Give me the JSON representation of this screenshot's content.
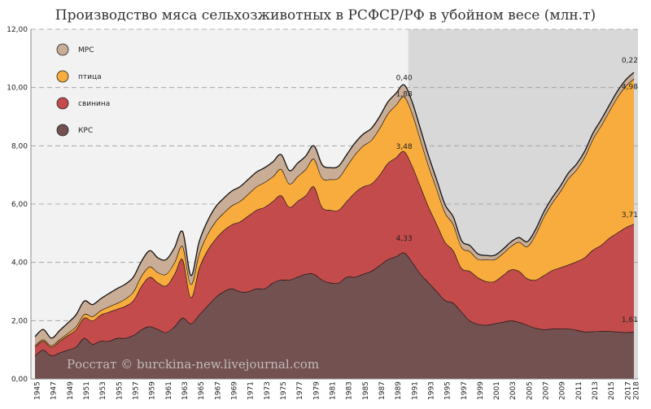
{
  "chart_data": {
    "type": "area",
    "stacked": true,
    "title": "Производство мяса сельхозживотных в РСФСР/РФ в убойном весе (млн.т)",
    "source": "Росстат © burckina-new.livejournal.com",
    "xlabel": "",
    "ylabel": "",
    "xlim": [
      1945,
      2018
    ],
    "ylim": [
      0,
      12
    ],
    "y_ticks": [
      "0,00",
      "2,00",
      "4,00",
      "6,00",
      "8,00",
      "10,00",
      "12,00"
    ],
    "x_ticks": [
      "1945",
      "1947",
      "1949",
      "1951",
      "1953",
      "1955",
      "1957",
      "1959",
      "1961",
      "1963",
      "1965",
      "1967",
      "1969",
      "1971",
      "1973",
      "1975",
      "1977",
      "1979",
      "1981",
      "1983",
      "1985",
      "1987",
      "1989",
      "1991",
      "1993",
      "1995",
      "1997",
      "1999",
      "2001",
      "2003",
      "2005",
      "2007",
      "2009",
      "2011",
      "2013",
      "2015",
      "2017",
      "2018"
    ],
    "grid": "horizontal dashed",
    "shaded_region": [
      1990.5,
      2018.5
    ],
    "legend_position": "top-left",
    "x": [
      1945,
      1946,
      1947,
      1948,
      1949,
      1950,
      1951,
      1952,
      1953,
      1954,
      1955,
      1956,
      1957,
      1958,
      1959,
      1960,
      1961,
      1962,
      1963,
      1964,
      1965,
      1966,
      1967,
      1968,
      1969,
      1970,
      1971,
      1972,
      1973,
      1974,
      1975,
      1976,
      1977,
      1978,
      1979,
      1980,
      1981,
      1982,
      1983,
      1984,
      1985,
      1986,
      1987,
      1988,
      1989,
      1990,
      1991,
      1992,
      1993,
      1994,
      1995,
      1996,
      1997,
      1998,
      1999,
      2000,
      2001,
      2002,
      2003,
      2004,
      2005,
      2006,
      2007,
      2008,
      2009,
      2010,
      2011,
      2012,
      2013,
      2014,
      2015,
      2016,
      2017,
      2018
    ],
    "series": [
      {
        "name": "КРС",
        "color": "#735151",
        "values": [
          0.8,
          1.0,
          0.8,
          0.9,
          1.0,
          1.1,
          1.4,
          1.2,
          1.3,
          1.3,
          1.4,
          1.4,
          1.5,
          1.7,
          1.8,
          1.7,
          1.6,
          1.8,
          2.1,
          1.9,
          2.2,
          2.5,
          2.8,
          3.0,
          3.1,
          3.0,
          3.0,
          3.1,
          3.1,
          3.3,
          3.4,
          3.4,
          3.5,
          3.6,
          3.6,
          3.4,
          3.3,
          3.3,
          3.5,
          3.5,
          3.6,
          3.7,
          3.9,
          4.1,
          4.2,
          4.33,
          4.0,
          3.6,
          3.3,
          3.0,
          2.7,
          2.6,
          2.3,
          2.0,
          1.88,
          1.85,
          1.9,
          1.95,
          2.0,
          1.95,
          1.85,
          1.75,
          1.7,
          1.72,
          1.72,
          1.72,
          1.68,
          1.62,
          1.63,
          1.64,
          1.64,
          1.62,
          1.6,
          1.61
        ]
      },
      {
        "name": "свинина",
        "color": "#c34b4b",
        "values": [
          0.3,
          0.3,
          0.3,
          0.4,
          0.5,
          0.6,
          0.7,
          0.8,
          0.9,
          1.0,
          1.0,
          1.1,
          1.2,
          1.5,
          1.7,
          1.6,
          1.6,
          1.8,
          2.0,
          0.9,
          1.6,
          1.9,
          2.0,
          2.1,
          2.2,
          2.4,
          2.6,
          2.7,
          2.8,
          2.8,
          2.9,
          2.5,
          2.6,
          2.7,
          3.0,
          2.5,
          2.5,
          2.5,
          2.6,
          2.9,
          3.0,
          3.0,
          3.1,
          3.3,
          3.4,
          3.48,
          3.3,
          3.0,
          2.6,
          2.3,
          2.0,
          1.8,
          1.5,
          1.7,
          1.6,
          1.5,
          1.45,
          1.6,
          1.75,
          1.75,
          1.6,
          1.65,
          1.85,
          2.0,
          2.1,
          2.2,
          2.35,
          2.55,
          2.8,
          2.95,
          3.2,
          3.4,
          3.6,
          3.71
        ]
      },
      {
        "name": "птица",
        "color": "#f7ac3d",
        "values": [
          0.05,
          0.05,
          0.05,
          0.06,
          0.07,
          0.1,
          0.12,
          0.15,
          0.15,
          0.18,
          0.2,
          0.25,
          0.3,
          0.35,
          0.35,
          0.35,
          0.4,
          0.4,
          0.45,
          0.45,
          0.5,
          0.55,
          0.6,
          0.6,
          0.65,
          0.7,
          0.75,
          0.8,
          0.85,
          0.85,
          0.9,
          0.8,
          0.85,
          0.9,
          0.95,
          1.0,
          1.05,
          1.1,
          1.2,
          1.3,
          1.4,
          1.5,
          1.6,
          1.7,
          1.8,
          1.88,
          1.8,
          1.6,
          1.4,
          1.2,
          1.0,
          0.9,
          0.72,
          0.68,
          0.63,
          0.75,
          0.75,
          0.75,
          0.8,
          1.0,
          1.1,
          1.55,
          2.0,
          2.3,
          2.6,
          2.95,
          3.15,
          3.45,
          3.8,
          4.1,
          4.35,
          4.65,
          4.85,
          4.98
        ]
      },
      {
        "name": "МРС",
        "color": "#c9ad96",
        "values": [
          0.3,
          0.35,
          0.25,
          0.3,
          0.35,
          0.4,
          0.45,
          0.4,
          0.4,
          0.45,
          0.5,
          0.5,
          0.5,
          0.5,
          0.55,
          0.5,
          0.5,
          0.5,
          0.5,
          0.3,
          0.4,
          0.45,
          0.5,
          0.5,
          0.5,
          0.5,
          0.5,
          0.5,
          0.5,
          0.5,
          0.5,
          0.45,
          0.45,
          0.45,
          0.45,
          0.45,
          0.4,
          0.4,
          0.4,
          0.4,
          0.4,
          0.4,
          0.4,
          0.4,
          0.4,
          0.4,
          0.38,
          0.36,
          0.33,
          0.3,
          0.27,
          0.25,
          0.22,
          0.2,
          0.18,
          0.14,
          0.14,
          0.14,
          0.15,
          0.15,
          0.16,
          0.17,
          0.17,
          0.18,
          0.18,
          0.19,
          0.19,
          0.19,
          0.2,
          0.2,
          0.2,
          0.21,
          0.21,
          0.22
        ]
      }
    ],
    "annotations": [
      {
        "text": "0,40",
        "x": 1990,
        "y": 10.25
      },
      {
        "text": "1,88",
        "x": 1990,
        "y": 9.7
      },
      {
        "text": "3,48",
        "x": 1990,
        "y": 7.9
      },
      {
        "text": "4,33",
        "x": 1990,
        "y": 4.75
      },
      {
        "text": "0,22",
        "x": 2017.5,
        "y": 10.85
      },
      {
        "text": "4,98",
        "x": 2017.5,
        "y": 9.95
      },
      {
        "text": "3,71",
        "x": 2017.5,
        "y": 5.55
      },
      {
        "text": "1,61",
        "x": 2017.5,
        "y": 1.95
      }
    ]
  }
}
